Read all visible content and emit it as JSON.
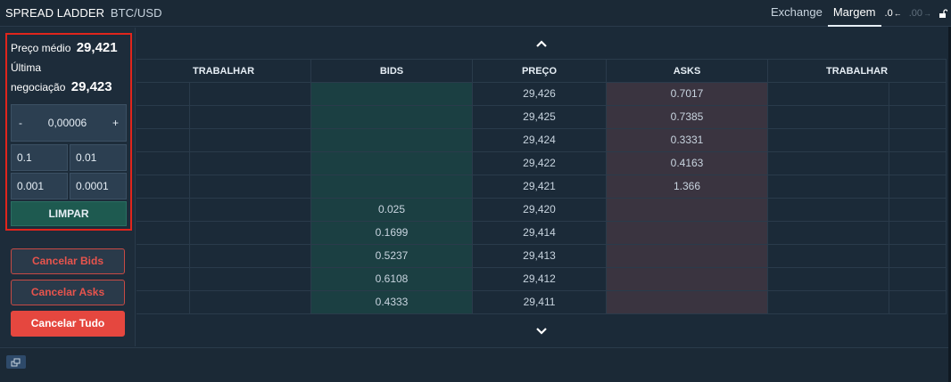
{
  "header": {
    "title": "SPREAD LADDER",
    "pair": "BTC/USD",
    "tabs": [
      {
        "label": "Exchange",
        "active": false
      },
      {
        "label": "Margem",
        "active": true
      }
    ],
    "decimals_less": ".0",
    "decimals_more": ".00"
  },
  "summary": {
    "avg_price_label": "Preço médio",
    "avg_price_value": "29,421",
    "last_trade_label_1": "Última",
    "last_trade_label_2": "negociação",
    "last_trade_value": "29,423"
  },
  "stepper": {
    "minus": "-",
    "value": "0,00006",
    "plus": "+"
  },
  "increments": [
    "0.1",
    "0.01",
    "0.001",
    "0.0001"
  ],
  "clear_label": "LIMPAR",
  "cancel": {
    "bids": "Cancelar Bids",
    "asks": "Cancelar Asks",
    "all": "Cancelar Tudo"
  },
  "columns": [
    "TRABALHAR",
    "BIDS",
    "PREÇO",
    "ASKS",
    "TRABALHAR"
  ],
  "rows": [
    {
      "bid": "",
      "price": "29,426",
      "ask": "0.7017"
    },
    {
      "bid": "",
      "price": "29,425",
      "ask": "0.7385"
    },
    {
      "bid": "",
      "price": "29,424",
      "ask": "0.3331"
    },
    {
      "bid": "",
      "price": "29,422",
      "ask": "0.4163"
    },
    {
      "bid": "",
      "price": "29,421",
      "ask": "1.366"
    },
    {
      "bid": "0.025",
      "price": "29,420",
      "ask": ""
    },
    {
      "bid": "0.1699",
      "price": "29,414",
      "ask": ""
    },
    {
      "bid": "0.5237",
      "price": "29,413",
      "ask": ""
    },
    {
      "bid": "0.6108",
      "price": "29,412",
      "ask": ""
    },
    {
      "bid": "0.4333",
      "price": "29,411",
      "ask": ""
    }
  ],
  "colors": {
    "bid_bg": "#1b3f42",
    "ask_bg": "#3a3440",
    "cancel_red": "#e5473f",
    "highlight_border": "#e0251c"
  },
  "icons": {
    "scroll_up": "chevron-up-icon",
    "scroll_down": "chevron-down-icon",
    "popout": "popout-window-icon",
    "lock": "unlock-icon"
  }
}
